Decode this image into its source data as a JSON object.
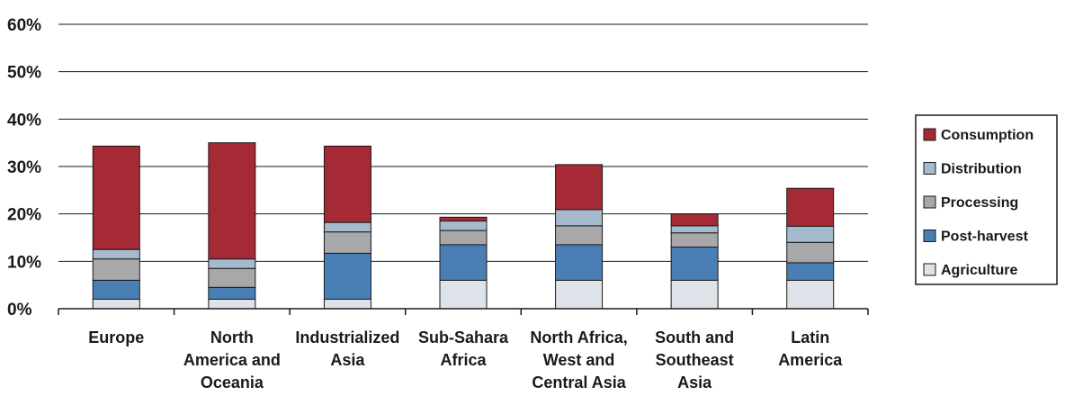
{
  "chart_data": {
    "type": "bar",
    "stacked": true,
    "categories": [
      "Europe",
      "North America and Oceania",
      "Industrialized Asia",
      "Sub-Sahara Africa",
      "North Africa, West and Central Asia",
      "South and Southeast Asia",
      "Latin America"
    ],
    "category_lines": [
      [
        "Europe"
      ],
      [
        "North",
        "America and",
        "Oceania"
      ],
      [
        "Industrialized",
        "Asia"
      ],
      [
        "Sub-Sahara",
        "Africa"
      ],
      [
        "North Africa,",
        "West and",
        "Central Asia"
      ],
      [
        "South and",
        "Southeast",
        "Asia"
      ],
      [
        "Latin",
        "America"
      ]
    ],
    "series": [
      {
        "name": "Agriculture",
        "color": "#dde3e8",
        "values": [
          2,
          2,
          2,
          6,
          6,
          6,
          6
        ]
      },
      {
        "name": "Post-harvest",
        "color": "#4a7fb6",
        "values": [
          4,
          2.5,
          9.7,
          7.5,
          7.5,
          7,
          3.7
        ]
      },
      {
        "name": "Processing",
        "color": "#a8a8ab",
        "values": [
          4.5,
          4,
          4.5,
          3,
          4,
          3,
          4.3
        ]
      },
      {
        "name": "Distribution",
        "color": "#a6bacd",
        "values": [
          2,
          2,
          2,
          2,
          3.4,
          1.5,
          3.4
        ]
      },
      {
        "name": "Consumption",
        "color": "#a52a35",
        "values": [
          21.8,
          24.5,
          16.1,
          0.8,
          9.5,
          2.5,
          8
        ]
      }
    ],
    "legend_order": [
      "Consumption",
      "Distribution",
      "Processing",
      "Post-harvest",
      "Agriculture"
    ],
    "ylim": [
      0,
      60
    ],
    "yticks": [
      "0%",
      "10%",
      "20%",
      "30%",
      "40%",
      "50%",
      "60%"
    ],
    "grid": true,
    "legend_position": "right",
    "title": "",
    "xlabel": "",
    "ylabel": ""
  }
}
